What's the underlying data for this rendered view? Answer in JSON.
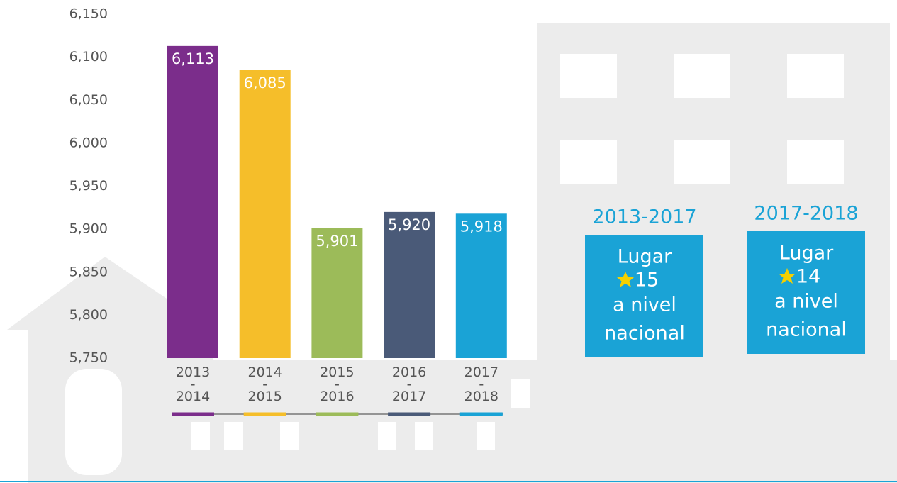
{
  "chart_data": {
    "type": "bar",
    "categories": [
      "2013\n-\n2014",
      "2014\n-\n2015",
      "2015\n-\n2016",
      "2016\n-\n2017",
      "2017\n-\n2018"
    ],
    "values": [
      6113,
      6085,
      5901,
      5920,
      5918
    ],
    "value_labels": [
      "6,113",
      "6,085",
      "5,901",
      "5,920",
      "5,918"
    ],
    "colors": [
      "#7b2d8b",
      "#f5be2a",
      "#9cbb59",
      "#4a5a78",
      "#1aa3d6"
    ],
    "ylim": [
      5750,
      6150
    ],
    "yticks": [
      {
        "value": 5750,
        "label": "5,750"
      },
      {
        "value": 5800,
        "label": "5,800"
      },
      {
        "value": 5850,
        "label": "5,850"
      },
      {
        "value": 5900,
        "label": "5,900"
      },
      {
        "value": 5950,
        "label": "5,950"
      },
      {
        "value": 6000,
        "label": "6,000"
      },
      {
        "value": 6050,
        "label": "6,050"
      },
      {
        "value": 6100,
        "label": "6,100"
      },
      {
        "value": 6150,
        "label": "6,150"
      }
    ],
    "grid": false,
    "annotations": [
      {
        "period": "2013-2017",
        "label": "Lugar",
        "rank": "15",
        "note1": "a nivel",
        "note2": "nacional"
      },
      {
        "period": "2017-2018",
        "label": "Lugar",
        "rank": "14",
        "note1": "a nivel",
        "note2": "nacional"
      }
    ]
  }
}
